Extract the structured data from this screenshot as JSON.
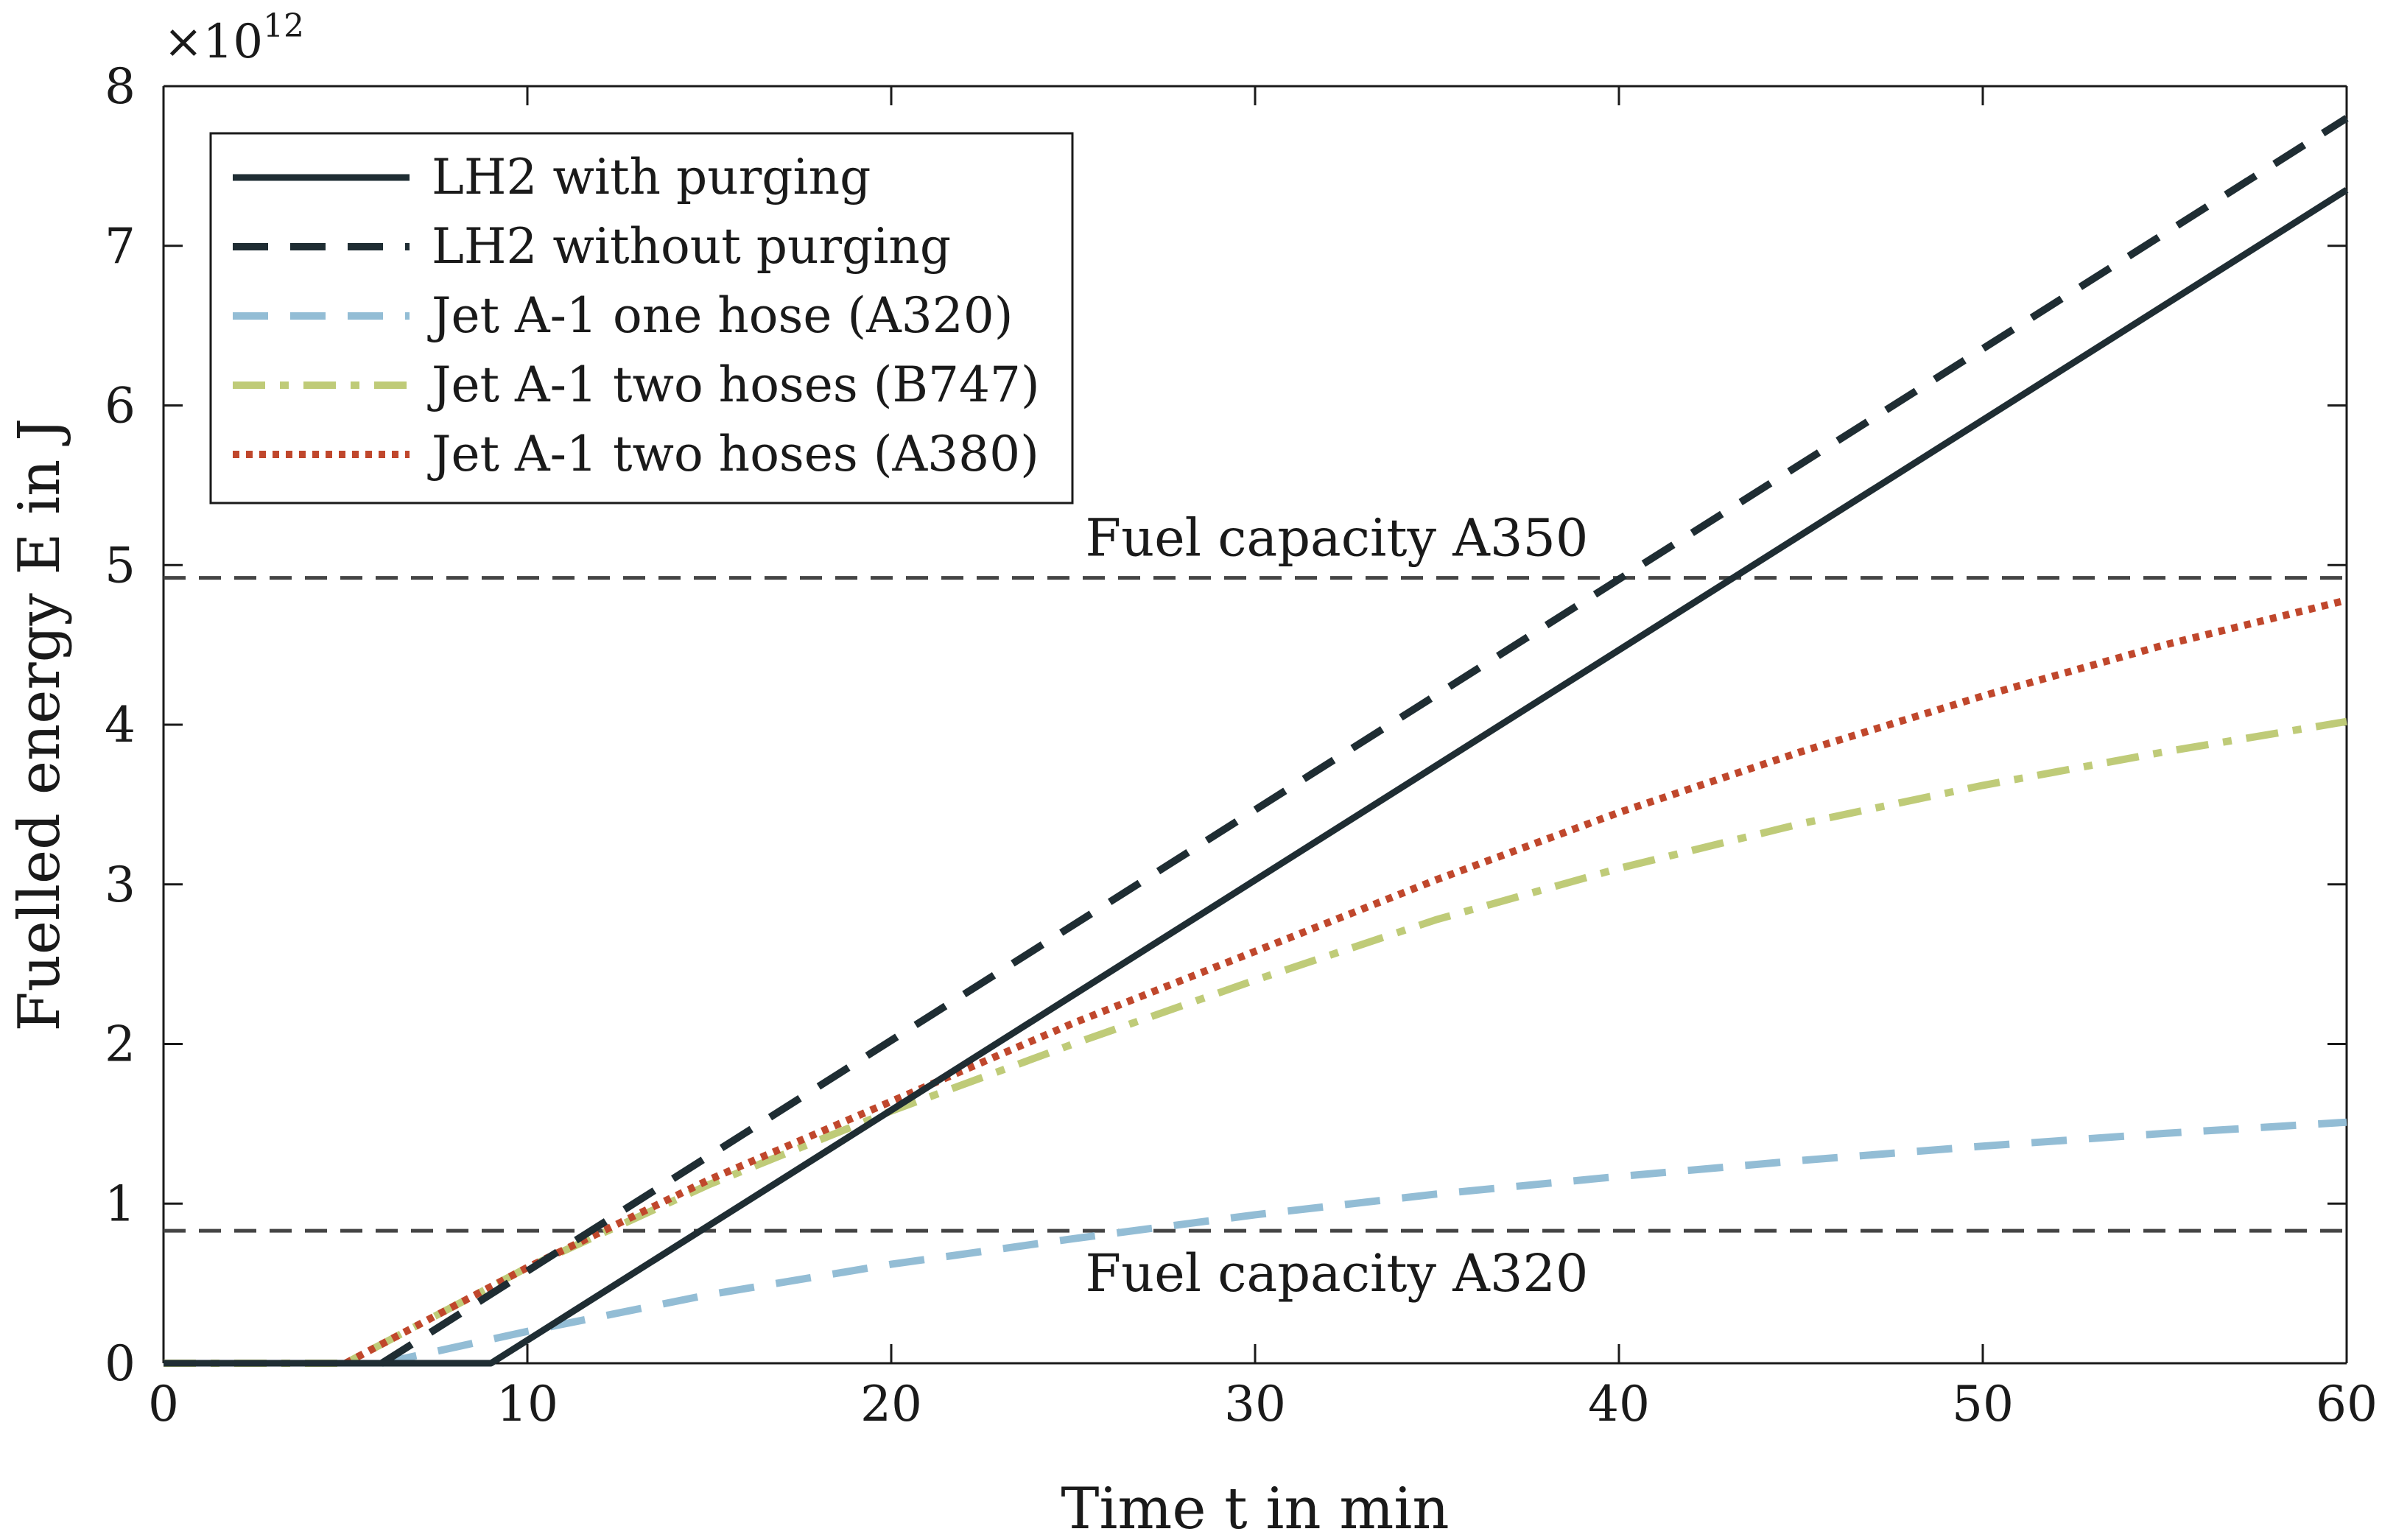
{
  "chart_data": {
    "type": "line",
    "title": "",
    "xlabel": "Time t in min",
    "ylabel": "Fuelled energy E in J",
    "y_multiplier": "×10^12",
    "y_multiplier_base": "×10",
    "y_multiplier_exp": "12",
    "xlim": [
      0,
      60
    ],
    "ylim": [
      0,
      8
    ],
    "xticks": [
      0,
      10,
      20,
      30,
      40,
      50,
      60
    ],
    "yticks": [
      0,
      1,
      2,
      3,
      4,
      5,
      6,
      7,
      8
    ],
    "grid": false,
    "legend_position": "top-left",
    "series": [
      {
        "name": "LH2 with purging",
        "color": "#1f2d33",
        "style": "solid",
        "x": [
          0,
          9,
          60
        ],
        "y": [
          0,
          0,
          7.35
        ]
      },
      {
        "name": "LH2 without purging",
        "color": "#1f2d33",
        "style": "dashed",
        "x": [
          6,
          60
        ],
        "y": [
          0,
          7.8
        ]
      },
      {
        "name": "Jet A-1 one hose (A320)",
        "color": "#93bdd5",
        "style": "dashed",
        "x": [
          6,
          10,
          15,
          20,
          25,
          30,
          35,
          40,
          45,
          50,
          55,
          60
        ],
        "y": [
          0,
          0.2,
          0.43,
          0.62,
          0.78,
          0.93,
          1.06,
          1.17,
          1.27,
          1.36,
          1.44,
          1.51
        ]
      },
      {
        "name": "Jet A-1 two hoses (B747)",
        "color": "#bfcb78",
        "style": "dashdot",
        "x": [
          0,
          5,
          10,
          15,
          20,
          25,
          30,
          35,
          40,
          45,
          50,
          55,
          60
        ],
        "y": [
          0,
          0,
          0.6,
          1.12,
          1.58,
          2.0,
          2.4,
          2.78,
          3.1,
          3.38,
          3.62,
          3.83,
          4.02
        ]
      },
      {
        "name": "Jet A-1 two hoses (A380)",
        "color": "#c0472c",
        "style": "dotted",
        "x": [
          5,
          10,
          15,
          20,
          25,
          30,
          35,
          40,
          45,
          50,
          55,
          60
        ],
        "y": [
          0,
          0.6,
          1.15,
          1.64,
          2.13,
          2.58,
          3.03,
          3.45,
          3.83,
          4.18,
          4.5,
          4.78
        ]
      }
    ],
    "reference_lines": [
      {
        "label": "Fuel capacity A350",
        "y": 4.92,
        "label_position": "above"
      },
      {
        "label": "Fuel capacity A320",
        "y": 0.83,
        "label_position": "below"
      }
    ]
  }
}
